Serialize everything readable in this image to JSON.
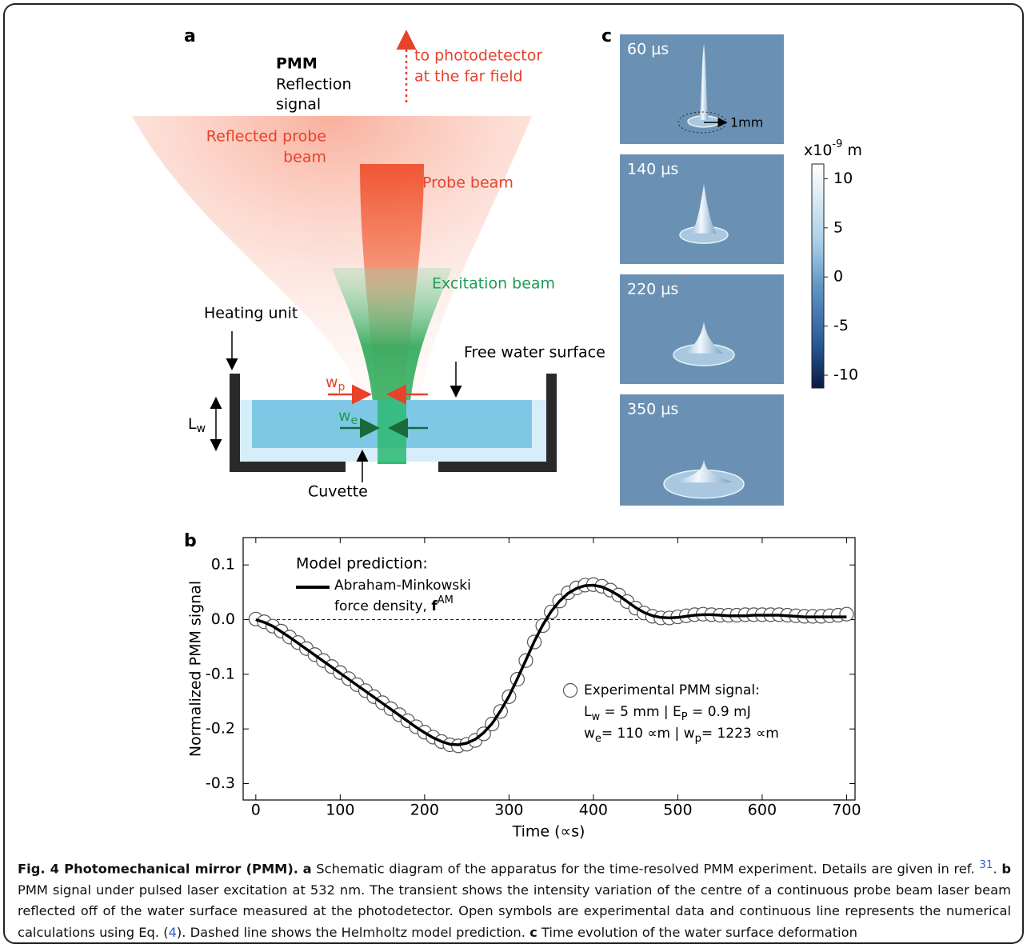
{
  "panel_a": {
    "label": "a",
    "pmm": "PMM",
    "reflection": "Reflection",
    "signal": "signal",
    "to_photodetector": "to photodetector",
    "far_field": "at the far field",
    "reflected_probe": "Reflected probe",
    "beam": "beam",
    "probe_beam": "Probe beam",
    "excitation_beam": "Excitation beam",
    "heating_unit": "Heating unit",
    "free_water_surface": "Free water surface",
    "wp": [
      "w",
      "p"
    ],
    "we": [
      "w",
      "e"
    ],
    "lw": [
      "L",
      "w"
    ],
    "cuvette": "Cuvette"
  },
  "panel_c": {
    "label": "c",
    "frames": [
      "60 μs",
      "140 μs",
      "220 μs",
      "350 μs"
    ],
    "scale": "1mm",
    "colorbar": {
      "unit": [
        "x10",
        "-9",
        " m"
      ],
      "lim": [
        -11.3,
        11.5
      ],
      "ticks": [
        10,
        5,
        0,
        -5,
        -10
      ]
    }
  },
  "chart_data": {
    "type": "line",
    "label": "b",
    "xlabel": "Time (∝s)",
    "ylabel": "Normalized PMM signal",
    "xlim": [
      -15,
      710
    ],
    "ylim": [
      -0.33,
      0.15
    ],
    "xticks": [
      0,
      100,
      200,
      300,
      400,
      500,
      600,
      700
    ],
    "yticks": [
      0.1,
      {
        "value": 0,
        "label": "0.0"
      },
      -0.1,
      -0.2,
      -0.3
    ],
    "hline": 0,
    "x": [
      0,
      10,
      20,
      30,
      40,
      50,
      60,
      70,
      80,
      90,
      100,
      110,
      120,
      130,
      140,
      150,
      160,
      170,
      180,
      190,
      200,
      210,
      220,
      230,
      240,
      250,
      260,
      270,
      280,
      290,
      300,
      310,
      320,
      330,
      340,
      350,
      360,
      370,
      380,
      390,
      400,
      410,
      420,
      430,
      440,
      450,
      460,
      470,
      480,
      490,
      500,
      510,
      520,
      530,
      540,
      550,
      560,
      570,
      580,
      590,
      600,
      610,
      620,
      630,
      640,
      650,
      660,
      670,
      680,
      690,
      700
    ],
    "series": [
      {
        "name": "Experimental PMM signal:",
        "color": "#555555",
        "marker": "open-circle",
        "values": [
          0.001,
          -0.004,
          -0.012,
          -0.021,
          -0.032,
          -0.042,
          -0.053,
          -0.064,
          -0.075,
          -0.086,
          -0.097,
          -0.108,
          -0.119,
          -0.13,
          -0.141,
          -0.152,
          -0.163,
          -0.174,
          -0.185,
          -0.196,
          -0.206,
          -0.215,
          -0.223,
          -0.229,
          -0.231,
          -0.228,
          -0.221,
          -0.209,
          -0.191,
          -0.168,
          -0.141,
          -0.109,
          -0.075,
          -0.041,
          -0.011,
          0.014,
          0.034,
          0.049,
          0.058,
          0.063,
          0.064,
          0.061,
          0.054,
          0.045,
          0.033,
          0.021,
          0.012,
          0.006,
          0.003,
          0.003,
          0.005,
          0.007,
          0.009,
          0.01,
          0.009,
          0.008,
          0.008,
          0.008,
          0.009,
          0.009,
          0.009,
          0.009,
          0.009,
          0.008,
          0.007,
          0.006,
          0.006,
          0.006,
          0.007,
          0.008,
          0.01
        ]
      },
      {
        "name": "Abraham-Minkowski",
        "color": "#000000",
        "values": [
          0,
          -0.005,
          -0.012,
          -0.022,
          -0.032,
          -0.043,
          -0.054,
          -0.065,
          -0.076,
          -0.087,
          -0.098,
          -0.109,
          -0.12,
          -0.131,
          -0.142,
          -0.153,
          -0.164,
          -0.175,
          -0.186,
          -0.197,
          -0.207,
          -0.216,
          -0.223,
          -0.228,
          -0.229,
          -0.226,
          -0.219,
          -0.207,
          -0.19,
          -0.167,
          -0.14,
          -0.108,
          -0.074,
          -0.04,
          -0.01,
          0.015,
          0.034,
          0.048,
          0.057,
          0.062,
          0.063,
          0.06,
          0.053,
          0.044,
          0.033,
          0.022,
          0.013,
          0.007,
          0.004,
          0.003,
          0.004,
          0.006,
          0.008,
          0.009,
          0.009,
          0.008,
          0.007,
          0.007,
          0.007,
          0.008,
          0.008,
          0.008,
          0.008,
          0.007,
          0.006,
          0.005,
          0.005,
          0.005,
          0.005,
          0.005,
          0.005
        ]
      }
    ],
    "legend_title": "Model prediction:",
    "legend_model_line2": [
      "force density, ",
      "f",
      "AM"
    ],
    "legend_exp_line2": [
      "L",
      "w",
      " = 5 mm | E",
      "P",
      " = 0.9 mJ"
    ],
    "legend_exp_line3": [
      "w",
      "e",
      "= 110 ∝m | w",
      "p",
      "= 1223 ∝m"
    ]
  },
  "caption": {
    "title": "Fig. 4 Photomechanical mirror (PMM).",
    "a_label": "a",
    "a_text": "Schematic diagram of the apparatus for the time-resolved PMM experiment. Details are given in ref.",
    "ref": "31",
    "ref_end": ".",
    "b_label": "b",
    "b_text": "PMM signal under pulsed laser excitation at 532 nm. The transient shows the intensity variation of the centre of a continuous probe beam laser beam reflected off of the water surface measured at the photodetector. Open symbols are experimental data and continuous line represents the numerical calculations using Eq. (",
    "eq": "4",
    "b_end": "). Dashed line shows the Helmholtz model prediction.",
    "c_label": "c",
    "c_text": "Time evolution of the water surface deformation"
  }
}
